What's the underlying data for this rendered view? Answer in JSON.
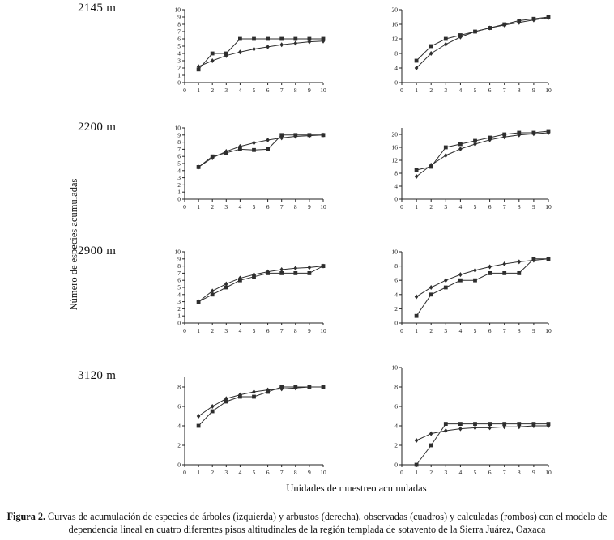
{
  "page": {
    "ylabel": "Número de especies acumuladas",
    "xlabel": "Unidades de muestreo acumuladas",
    "caption_label": "Figura 2.",
    "caption_text": "Curvas de acumulación de especies de árboles (izquierda) y arbustos (derecha), observadas (cuadros) y calculadas (rombos) con el modelo de dependencia lineal en cuatro diferentes pisos altitudinales de la región templada de sotavento de la Sierra Juárez, Oaxaca"
  },
  "elevations": [
    "2145 m",
    "2200 m",
    "2900 m",
    "3120 m"
  ],
  "colors": {
    "axis": "#222222",
    "series": "#2e2e2e",
    "text": "#111111"
  },
  "chart_data": [
    {
      "type": "line",
      "title": "árboles 2145 m",
      "x": [
        1,
        2,
        3,
        4,
        5,
        6,
        7,
        8,
        9,
        10
      ],
      "xlim": [
        0,
        10
      ],
      "xticks": [
        0,
        1,
        2,
        3,
        4,
        5,
        6,
        7,
        8,
        9,
        10
      ],
      "ylim": [
        0,
        10
      ],
      "yticks": [
        0,
        1,
        2,
        3,
        4,
        5,
        6,
        7,
        8,
        9,
        10
      ],
      "series": [
        {
          "name": "observadas (cuadros)",
          "marker": "square",
          "values": [
            1.8,
            4,
            4,
            6,
            6,
            6,
            6,
            6,
            6,
            6
          ]
        },
        {
          "name": "calculadas (rombos)",
          "marker": "diamond",
          "values": [
            2.2,
            3,
            3.7,
            4.2,
            4.6,
            4.9,
            5.2,
            5.4,
            5.6,
            5.7
          ]
        }
      ]
    },
    {
      "type": "line",
      "title": "arbustos 2145 m",
      "x": [
        1,
        2,
        3,
        4,
        5,
        6,
        7,
        8,
        9,
        10
      ],
      "xlim": [
        0,
        10
      ],
      "xticks": [
        0,
        1,
        2,
        3,
        4,
        5,
        6,
        7,
        8,
        9,
        10
      ],
      "ylim": [
        0,
        20
      ],
      "yticks": [
        0,
        4,
        8,
        12,
        16,
        20
      ],
      "series": [
        {
          "name": "observadas (cuadros)",
          "marker": "square",
          "values": [
            6,
            10,
            12,
            13,
            14,
            15,
            16,
            17,
            17.5,
            18
          ]
        },
        {
          "name": "calculadas (rombos)",
          "marker": "diamond",
          "values": [
            4,
            8,
            10.5,
            12.5,
            14,
            15,
            15.8,
            16.5,
            17.2,
            17.8
          ]
        }
      ]
    },
    {
      "type": "line",
      "title": "árboles 2200 m",
      "x": [
        1,
        2,
        3,
        4,
        5,
        6,
        7,
        8,
        9,
        10
      ],
      "xlim": [
        0,
        10
      ],
      "xticks": [
        0,
        1,
        2,
        3,
        4,
        5,
        6,
        7,
        8,
        9,
        10
      ],
      "ylim": [
        0,
        10
      ],
      "yticks": [
        0,
        1,
        2,
        3,
        4,
        5,
        6,
        7,
        8,
        9,
        10
      ],
      "series": [
        {
          "name": "observadas (cuadros)",
          "marker": "square",
          "values": [
            4.5,
            6,
            6.5,
            7,
            6.9,
            7,
            9,
            9,
            9,
            9
          ]
        },
        {
          "name": "calculadas (rombos)",
          "marker": "diamond",
          "values": [
            4.5,
            5.8,
            6.7,
            7.4,
            7.9,
            8.3,
            8.6,
            8.8,
            8.9,
            9
          ]
        }
      ]
    },
    {
      "type": "line",
      "title": "arbustos 2200 m",
      "x": [
        1,
        2,
        3,
        4,
        5,
        6,
        7,
        8,
        9,
        10
      ],
      "xlim": [
        0,
        10
      ],
      "xticks": [
        0,
        1,
        2,
        3,
        4,
        5,
        6,
        7,
        8,
        9,
        10
      ],
      "ylim": [
        0,
        22
      ],
      "yticks": [
        0,
        4,
        8,
        12,
        16,
        20
      ],
      "series": [
        {
          "name": "observadas (cuadros)",
          "marker": "square",
          "values": [
            9,
            10,
            16,
            17,
            18,
            19,
            20,
            20.5,
            20.5,
            21
          ]
        },
        {
          "name": "calculadas (rombos)",
          "marker": "diamond",
          "values": [
            7,
            10.5,
            13.5,
            15.5,
            17,
            18.3,
            19.2,
            19.8,
            20.2,
            20.5
          ]
        }
      ]
    },
    {
      "type": "line",
      "title": "árboles 2900 m",
      "x": [
        1,
        2,
        3,
        4,
        5,
        6,
        7,
        8,
        9,
        10
      ],
      "xlim": [
        0,
        10
      ],
      "xticks": [
        0,
        1,
        2,
        3,
        4,
        5,
        6,
        7,
        8,
        9,
        10
      ],
      "ylim": [
        0,
        10
      ],
      "yticks": [
        0,
        1,
        2,
        3,
        4,
        5,
        6,
        7,
        8,
        9,
        10
      ],
      "series": [
        {
          "name": "observadas (cuadros)",
          "marker": "square",
          "values": [
            3,
            4,
            5,
            6,
            6.5,
            7,
            7,
            7,
            7,
            8
          ]
        },
        {
          "name": "calculadas (rombos)",
          "marker": "diamond",
          "values": [
            3,
            4.5,
            5.5,
            6.3,
            6.8,
            7.2,
            7.5,
            7.7,
            7.8,
            8
          ]
        }
      ]
    },
    {
      "type": "line",
      "title": "arbustos 2900 m",
      "x": [
        1,
        2,
        3,
        4,
        5,
        6,
        7,
        8,
        9,
        10
      ],
      "xlim": [
        0,
        10
      ],
      "xticks": [
        0,
        1,
        2,
        3,
        4,
        5,
        6,
        7,
        8,
        9,
        10
      ],
      "ylim": [
        0,
        10
      ],
      "yticks": [
        0,
        2,
        4,
        6,
        8,
        10
      ],
      "series": [
        {
          "name": "observadas (cuadros)",
          "marker": "square",
          "values": [
            1,
            4,
            5,
            6,
            6,
            7,
            7,
            7,
            9,
            9
          ]
        },
        {
          "name": "calculadas (rombos)",
          "marker": "diamond",
          "values": [
            3.7,
            5,
            6,
            6.8,
            7.4,
            7.9,
            8.3,
            8.6,
            8.8,
            9
          ]
        }
      ]
    },
    {
      "type": "line",
      "title": "árboles 3120 m",
      "x": [
        1,
        2,
        3,
        4,
        5,
        6,
        7,
        8,
        9,
        10
      ],
      "xlim": [
        0,
        10
      ],
      "xticks": [
        0,
        1,
        2,
        3,
        4,
        5,
        6,
        7,
        8,
        9,
        10
      ],
      "ylim": [
        0,
        9
      ],
      "yticks": [
        0,
        2,
        4,
        6,
        8
      ],
      "series": [
        {
          "name": "observadas (cuadros)",
          "marker": "square",
          "values": [
            4,
            5.5,
            6.5,
            7,
            7,
            7.5,
            8,
            8,
            8,
            8
          ]
        },
        {
          "name": "calculadas (rombos)",
          "marker": "diamond",
          "values": [
            5,
            6,
            6.8,
            7.2,
            7.5,
            7.7,
            7.8,
            7.9,
            8,
            8
          ]
        }
      ]
    },
    {
      "type": "line",
      "title": "arbustos 3120 m",
      "x": [
        1,
        2,
        3,
        4,
        5,
        6,
        7,
        8,
        9,
        10
      ],
      "xlim": [
        0,
        10
      ],
      "xticks": [
        0,
        1,
        2,
        3,
        4,
        5,
        6,
        7,
        8,
        9,
        10
      ],
      "ylim": [
        0,
        10
      ],
      "yticks": [
        0,
        2,
        4,
        6,
        8,
        10
      ],
      "series": [
        {
          "name": "observadas (cuadros)",
          "marker": "square",
          "values": [
            0,
            2,
            4.2,
            4.2,
            4.2,
            4.2,
            4.2,
            4.2,
            4.2,
            4.2
          ]
        },
        {
          "name": "calculadas (rombos)",
          "marker": "diamond",
          "values": [
            2.5,
            3.2,
            3.5,
            3.7,
            3.8,
            3.8,
            3.9,
            3.9,
            4,
            4
          ]
        }
      ]
    }
  ]
}
